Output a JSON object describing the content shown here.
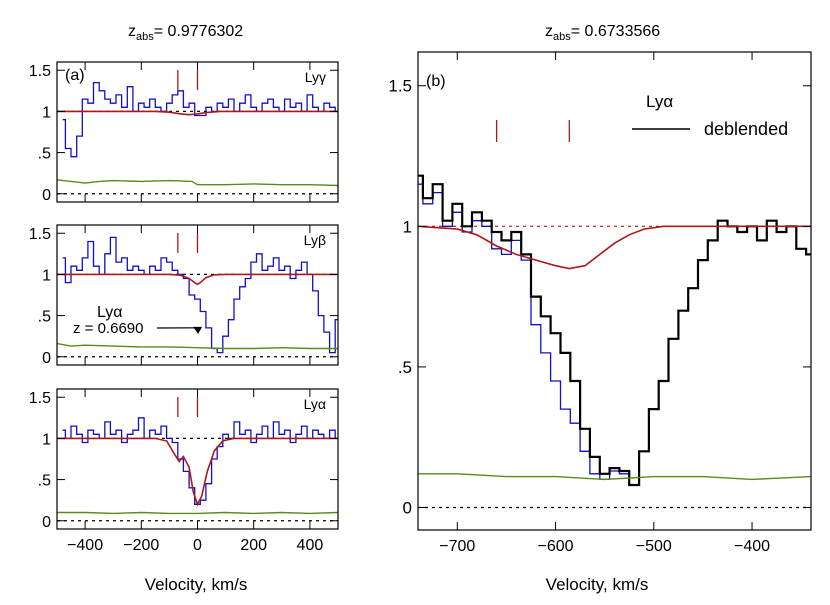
{
  "figure": {
    "left_title_prefix": "z",
    "left_title_sub": "abs",
    "left_title_value": "= 0.9776302",
    "right_title_prefix": "z",
    "right_title_sub": "abs",
    "right_title_value": "= 0.6733566",
    "left_xlabel": "Velocity, km/s",
    "right_xlabel": "Velocity, km/s"
  },
  "colors": {
    "flux": "#1010c8",
    "model": "#b01818",
    "error": "#5a8a1a",
    "deblended": "#000000",
    "axis": "#000000"
  },
  "chart_data": [
    {
      "type": "line",
      "panel_label": "(a)",
      "line_label": "Lyγ",
      "xlim": [
        -500,
        500
      ],
      "ylim": [
        -0.1,
        1.6
      ],
      "yticks": [
        "0",
        ".5",
        "1",
        "1.5"
      ],
      "component_marks": [
        -70,
        0
      ],
      "series": [
        {
          "role": "observed flux",
          "x": [
            -480,
            -460,
            -440,
            -420,
            -400,
            -380,
            -360,
            -340,
            -320,
            -300,
            -280,
            -260,
            -240,
            -220,
            -200,
            -180,
            -160,
            -140,
            -120,
            -100,
            -80,
            -60,
            -40,
            -20,
            0,
            20,
            40,
            60,
            80,
            100,
            120,
            140,
            160,
            180,
            200,
            220,
            240,
            260,
            280,
            300,
            320,
            340,
            360,
            380,
            400,
            420,
            440,
            460,
            480,
            500
          ],
          "y": [
            0.9,
            0.55,
            0.45,
            0.7,
            1.15,
            1.1,
            1.35,
            1.25,
            1.15,
            1.1,
            1.2,
            1.05,
            1.3,
            1.0,
            1.1,
            1.05,
            1.15,
            1.05,
            1.0,
            1.1,
            1.2,
            1.25,
            1.05,
            1.1,
            0.95,
            0.95,
            1.05,
            1.0,
            1.1,
            1.05,
            1.15,
            1.0,
            1.1,
            1.2,
            1.05,
            1.0,
            1.1,
            1.15,
            1.05,
            1.0,
            1.15,
            1.05,
            1.1,
            1.0,
            1.2,
            1.05,
            1.0,
            1.1,
            1.05,
            1.0
          ]
        },
        {
          "role": "model",
          "x": [
            -500,
            -150,
            -100,
            -60,
            -30,
            0,
            30,
            80,
            500
          ],
          "y": [
            1.0,
            1.0,
            0.99,
            0.97,
            0.96,
            0.97,
            0.985,
            1.0,
            1.0
          ]
        },
        {
          "role": "error",
          "x": [
            -500,
            -450,
            -400,
            -350,
            -300,
            -200,
            -100,
            -20,
            0,
            100,
            200,
            300,
            400,
            500
          ],
          "y": [
            0.17,
            0.15,
            0.13,
            0.15,
            0.16,
            0.15,
            0.16,
            0.15,
            0.11,
            0.11,
            0.12,
            0.11,
            0.11,
            0.1
          ]
        }
      ]
    },
    {
      "type": "line",
      "panel_label": "",
      "line_label": "Lyβ",
      "xlim": [
        -500,
        500
      ],
      "ylim": [
        -0.1,
        1.6
      ],
      "yticks": [
        "0",
        ".5",
        "1",
        "1.5"
      ],
      "component_marks": [
        -70,
        0
      ],
      "annotation": {
        "line1": "Lyα",
        "line2": "z = 0.6690",
        "x": 20,
        "y": 0.4
      },
      "series": [
        {
          "role": "observed flux",
          "x": [
            -480,
            -460,
            -440,
            -420,
            -400,
            -380,
            -360,
            -340,
            -320,
            -300,
            -280,
            -260,
            -240,
            -220,
            -200,
            -180,
            -160,
            -140,
            -120,
            -100,
            -80,
            -60,
            -40,
            -20,
            0,
            20,
            40,
            60,
            80,
            100,
            120,
            140,
            160,
            180,
            200,
            220,
            240,
            260,
            280,
            300,
            320,
            340,
            360,
            380,
            400,
            420,
            440,
            460,
            480,
            500
          ],
          "y": [
            1.2,
            0.9,
            1.1,
            1.05,
            1.2,
            1.4,
            1.1,
            1.0,
            1.25,
            1.45,
            1.15,
            1.2,
            1.05,
            1.1,
            1.05,
            1.0,
            1.1,
            1.05,
            1.2,
            1.15,
            1.05,
            1.0,
            0.95,
            0.75,
            0.7,
            0.55,
            0.35,
            0.1,
            0.05,
            0.25,
            0.45,
            0.7,
            0.85,
            0.95,
            1.15,
            1.25,
            1.05,
            1.1,
            1.2,
            1.05,
            1.1,
            0.95,
            1.05,
            1.15,
            1.0,
            0.8,
            0.5,
            0.3,
            0.05,
            0.45
          ]
        },
        {
          "role": "model",
          "x": [
            -500,
            -100,
            -60,
            -30,
            -10,
            0,
            10,
            30,
            60,
            100,
            500
          ],
          "y": [
            1.0,
            1.0,
            0.99,
            0.95,
            0.9,
            0.88,
            0.9,
            0.96,
            0.995,
            1.0,
            1.0
          ]
        },
        {
          "role": "error",
          "x": [
            -500,
            -450,
            -400,
            -300,
            -200,
            -100,
            0,
            100,
            200,
            300,
            400,
            500
          ],
          "y": [
            0.16,
            0.13,
            0.14,
            0.13,
            0.12,
            0.12,
            0.11,
            0.1,
            0.1,
            0.11,
            0.1,
            0.1
          ]
        }
      ]
    },
    {
      "type": "line",
      "panel_label": "",
      "line_label": "Lyα",
      "xlim": [
        -500,
        500
      ],
      "ylim": [
        -0.1,
        1.6
      ],
      "yticks": [
        "0",
        ".5",
        "1",
        "1.5"
      ],
      "component_marks": [
        -70,
        0
      ],
      "series": [
        {
          "role": "observed flux",
          "x": [
            -480,
            -460,
            -440,
            -420,
            -400,
            -380,
            -360,
            -340,
            -320,
            -300,
            -280,
            -260,
            -240,
            -220,
            -200,
            -180,
            -160,
            -140,
            -120,
            -100,
            -80,
            -60,
            -40,
            -20,
            0,
            20,
            40,
            60,
            80,
            100,
            120,
            140,
            160,
            180,
            200,
            220,
            240,
            260,
            280,
            300,
            320,
            340,
            360,
            380,
            400,
            420,
            440,
            460,
            480,
            500
          ],
          "y": [
            1.1,
            1.0,
            1.15,
            1.05,
            0.95,
            1.1,
            1.05,
            1.0,
            1.2,
            1.05,
            1.1,
            0.95,
            1.05,
            1.1,
            1.25,
            1.0,
            1.1,
            1.05,
            1.15,
            1.0,
            0.95,
            0.75,
            0.6,
            0.4,
            0.2,
            0.25,
            0.45,
            0.75,
            0.9,
            1.05,
            1.0,
            1.2,
            1.05,
            1.1,
            0.95,
            1.05,
            1.15,
            1.0,
            1.2,
            1.05,
            1.1,
            0.95,
            1.05,
            1.15,
            1.0,
            1.1,
            1.05,
            1.0,
            1.1,
            1.0
          ]
        },
        {
          "role": "model",
          "x": [
            -500,
            -150,
            -110,
            -80,
            -65,
            -50,
            -30,
            -15,
            0,
            15,
            35,
            60,
            90,
            130,
            500
          ],
          "y": [
            1.0,
            1.0,
            0.97,
            0.8,
            0.72,
            0.78,
            0.65,
            0.35,
            0.2,
            0.3,
            0.6,
            0.85,
            0.97,
            1.0,
            1.0
          ]
        },
        {
          "role": "error",
          "x": [
            -500,
            -400,
            -300,
            -200,
            -100,
            0,
            100,
            200,
            300,
            400,
            500
          ],
          "y": [
            0.1,
            0.1,
            0.09,
            0.1,
            0.09,
            0.09,
            0.1,
            0.09,
            0.1,
            0.09,
            0.1
          ]
        }
      ]
    },
    {
      "type": "line",
      "panel_label": "(b)",
      "line_label": "Lyα",
      "legend_label": "deblended",
      "xlim": [
        -740,
        -340
      ],
      "ylim": [
        -0.08,
        1.62
      ],
      "xticks": [
        -700,
        -600,
        -500,
        -400
      ],
      "yticks": [
        "0",
        ".5",
        "1",
        "1.5"
      ],
      "component_marks": [
        -660,
        -586
      ],
      "series": [
        {
          "role": "observed flux",
          "x": [
            -740,
            -730,
            -720,
            -710,
            -700,
            -690,
            -680,
            -670,
            -660,
            -650,
            -640,
            -630,
            -620,
            -610,
            -600,
            -590,
            -580,
            -570,
            -560,
            -550,
            -540,
            -530,
            -520,
            -510,
            -500,
            -490,
            -480,
            -470,
            -460,
            -450,
            -440,
            -430,
            -420,
            -410,
            -400,
            -390,
            -380,
            -370,
            -360,
            -350,
            -340
          ],
          "y": [
            1.15,
            1.08,
            1.12,
            1.0,
            1.05,
            0.98,
            1.02,
            1.0,
            0.92,
            0.9,
            0.95,
            0.88,
            0.65,
            0.55,
            0.45,
            0.35,
            0.3,
            0.2,
            0.12,
            0.1,
            0.13,
            0.12,
            0.08,
            0.2,
            0.35,
            0.45,
            0.6,
            0.7,
            0.78,
            0.88,
            0.95,
            1.02,
            1.0,
            0.98,
            1.0,
            0.95,
            1.02,
            0.98,
            1.0,
            0.92,
            0.9
          ]
        },
        {
          "role": "deblended",
          "x": [
            -740,
            -730,
            -720,
            -710,
            -700,
            -690,
            -680,
            -670,
            -660,
            -650,
            -640,
            -630,
            -620,
            -610,
            -600,
            -590,
            -580,
            -570,
            -560,
            -550,
            -540,
            -530,
            -520,
            -510,
            -500,
            -490,
            -480,
            -470,
            -460,
            -450,
            -440,
            -430,
            -420,
            -410,
            -400,
            -390,
            -380,
            -370,
            -360,
            -350,
            -340
          ],
          "y": [
            1.18,
            1.1,
            1.15,
            1.02,
            1.08,
            1.0,
            1.05,
            1.02,
            0.98,
            0.95,
            0.98,
            0.9,
            0.75,
            0.68,
            0.62,
            0.55,
            0.45,
            0.28,
            0.18,
            0.12,
            0.14,
            0.13,
            0.08,
            0.2,
            0.35,
            0.45,
            0.6,
            0.7,
            0.78,
            0.88,
            0.95,
            1.02,
            1.0,
            0.98,
            1.0,
            0.95,
            1.02,
            0.98,
            1.0,
            0.92,
            0.9
          ]
        },
        {
          "role": "model",
          "x": [
            -740,
            -700,
            -680,
            -660,
            -640,
            -620,
            -600,
            -586,
            -570,
            -555,
            -540,
            -525,
            -510,
            -490,
            -340
          ],
          "y": [
            1.0,
            0.99,
            0.97,
            0.93,
            0.9,
            0.88,
            0.86,
            0.85,
            0.86,
            0.9,
            0.94,
            0.97,
            0.99,
            1.0,
            1.0
          ]
        },
        {
          "role": "error",
          "x": [
            -740,
            -700,
            -650,
            -600,
            -550,
            -500,
            -450,
            -400,
            -340
          ],
          "y": [
            0.12,
            0.12,
            0.11,
            0.11,
            0.1,
            0.11,
            0.11,
            0.1,
            0.11
          ]
        }
      ]
    }
  ],
  "left_xticks": [
    "−400",
    "−200",
    "0",
    "200",
    "400"
  ],
  "right_xticks": [
    "−700",
    "−600",
    "−500",
    "−400"
  ]
}
